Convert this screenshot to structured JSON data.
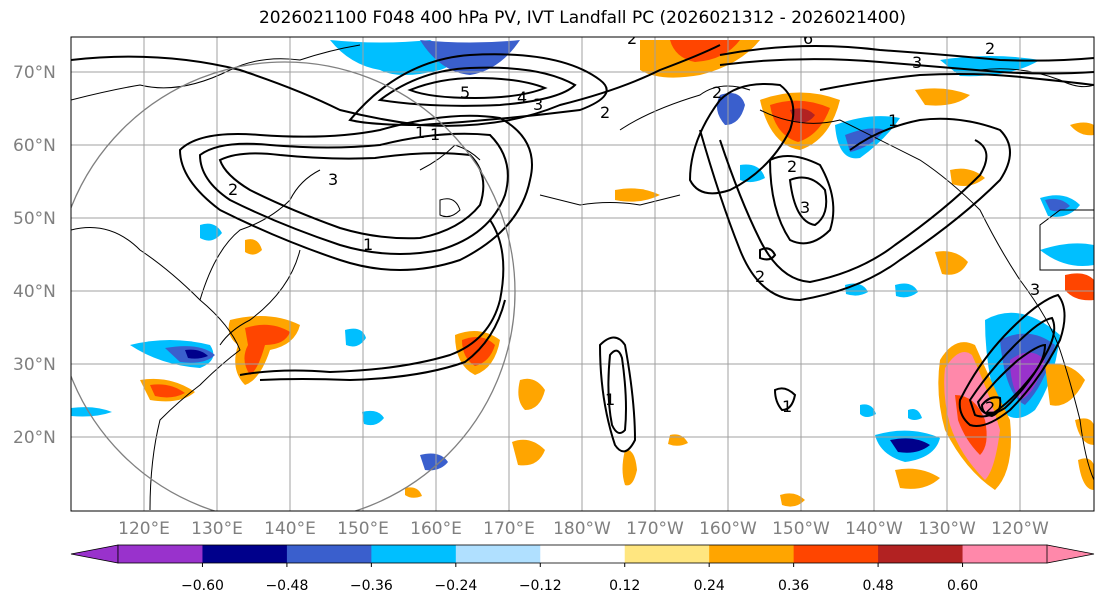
{
  "title": "2026021100 F048 400 hPa PV, IVT Landfall PC (2026021312 - 2026021400)",
  "lat_labels": [
    "70°N",
    "60°N",
    "50°N",
    "40°N",
    "30°N",
    "20°N"
  ],
  "lon_labels": [
    "120°E",
    "130°E",
    "140°E",
    "150°E",
    "160°E",
    "170°E",
    "180°W",
    "170°W",
    "160°W",
    "150°W",
    "140°W",
    "130°W",
    "120°W"
  ],
  "colorbar": {
    "colors": [
      "#9932cc",
      "#00008b",
      "#3a5fcd",
      "#00bfff",
      "#b0e0ff",
      "#ffffff",
      "#ffe680",
      "#ffa500",
      "#ff4500",
      "#b22222",
      "#ff88aa"
    ],
    "tick_labels": [
      "−0.60",
      "−0.48",
      "−0.36",
      "−0.24",
      "−0.12",
      "0.12",
      "0.24",
      "0.36",
      "0.48",
      "0.60"
    ]
  },
  "contour_labels": [
    "2",
    "6",
    "5",
    "4",
    "3",
    "2",
    "3",
    "2",
    "1",
    "1",
    "2",
    "3",
    "2",
    "3",
    "2",
    "1",
    "1",
    "2",
    "1",
    "1",
    "3",
    "2"
  ],
  "colors": {
    "gridline": "#a0a0a0",
    "lat_lon_text": "#7f7f7f",
    "circle": "#808080"
  }
}
